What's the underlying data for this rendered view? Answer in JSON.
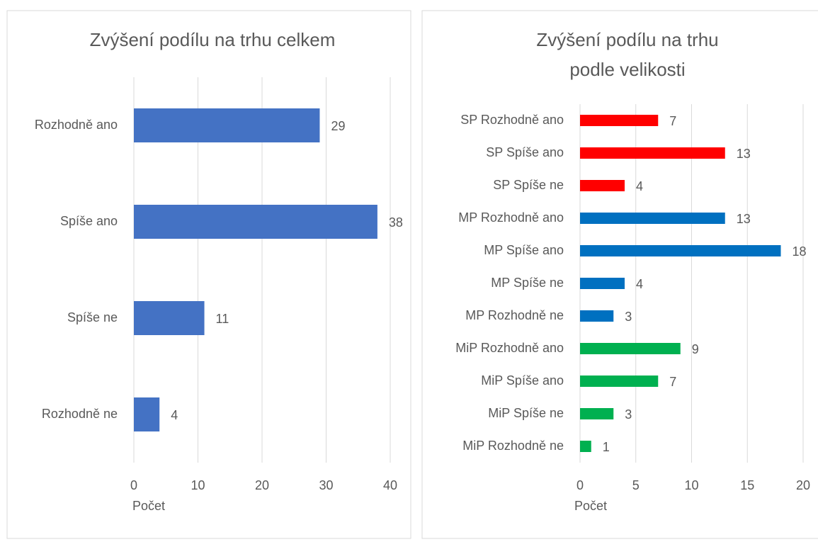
{
  "chart_data": [
    {
      "type": "barh",
      "title": [
        "Zvýšení podílu na trhu celkem"
      ],
      "xlabel": "Počet",
      "categories": [
        "Rozhodně ano",
        "Spíše ano",
        "Spíše ne",
        "Rozhodně ne"
      ],
      "values": [
        29,
        38,
        11,
        4
      ],
      "colors": [
        "#4472c4",
        "#4472c4",
        "#4472c4",
        "#4472c4"
      ],
      "xlim": [
        0,
        40
      ],
      "xticks": [
        0,
        10,
        20,
        30,
        40
      ],
      "grid": true
    },
    {
      "type": "barh",
      "title": [
        "Zvýšení podílu na trhu",
        "podle velikosti"
      ],
      "xlabel": "Počet",
      "categories": [
        "SP Rozhodně ano",
        "SP Spíše ano",
        "SP Spíše ne",
        "MP Rozhodně ano",
        "MP Spíše ano",
        "MP Spíše ne",
        "MP Rozhodně ne",
        "MiP Rozhodně ano",
        "MiP Spíše ano",
        "MiP Spíše ne",
        "MiP Rozhodně ne"
      ],
      "values": [
        7,
        13,
        4,
        13,
        18,
        4,
        3,
        9,
        7,
        3,
        1
      ],
      "colors": [
        "#ff0000",
        "#ff0000",
        "#ff0000",
        "#0070c0",
        "#0070c0",
        "#0070c0",
        "#0070c0",
        "#00b050",
        "#00b050",
        "#00b050",
        "#00b050"
      ],
      "xlim": [
        0,
        20
      ],
      "xticks": [
        0,
        5,
        10,
        15,
        20
      ],
      "grid": true
    }
  ]
}
